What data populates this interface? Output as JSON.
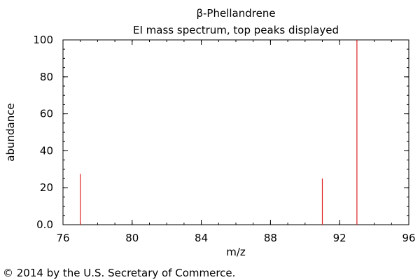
{
  "chart_data": {
    "type": "bar",
    "title": "β-Phellandrene",
    "subtitle": "EI mass spectrum, top peaks displayed",
    "xlabel": "m/z",
    "ylabel": "abundance",
    "xlim": [
      76,
      96
    ],
    "ylim": [
      0,
      100
    ],
    "x_ticks": [
      "76",
      "80",
      "84",
      "88",
      "92",
      "96"
    ],
    "y_ticks": [
      "0.0",
      "20",
      "40",
      "60",
      "80",
      "100"
    ],
    "grid": false,
    "peak_color": "#dd2222",
    "peaks": [
      {
        "mz": 77,
        "abundance": 27.5
      },
      {
        "mz": 91,
        "abundance": 25
      },
      {
        "mz": 93,
        "abundance": 100
      }
    ]
  },
  "footer": {
    "copyright": "© 2014 by the U.S. Secretary of Commerce."
  }
}
